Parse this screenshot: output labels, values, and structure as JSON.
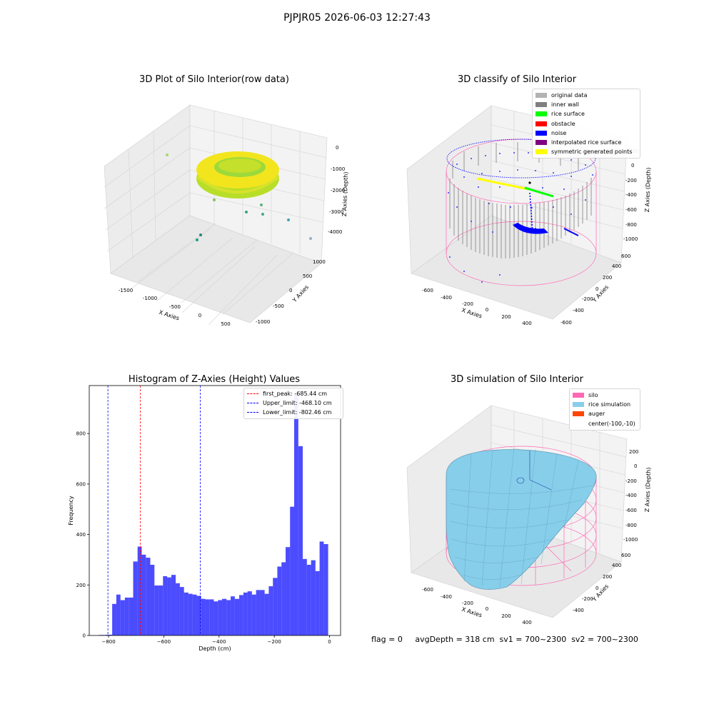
{
  "suptitle": "PJPJR05 2026-06-03 12:27:43",
  "panels": {
    "raw": {
      "title": "3D Plot of Silo Interior(row data)",
      "xlabel": "X Axies",
      "ylabel": "Y Axies",
      "zlabel": "Z Axies (Depth)",
      "xticks": [
        "-1500",
        "-1000",
        "-500",
        "0",
        "500"
      ],
      "yticks": [
        "1000",
        "500",
        "0",
        "-500",
        "-1000"
      ],
      "zticks": [
        "0",
        "-1000",
        "-2000",
        "-3000",
        "-4000"
      ]
    },
    "classify": {
      "title": "3D classify of Silo Interior",
      "xlabel": "X Axies",
      "ylabel": "Y Axies",
      "zlabel": "Z Axies (Depth)",
      "xticks": [
        "-600",
        "-400",
        "-200",
        "0",
        "200",
        "400"
      ],
      "yticks": [
        "600",
        "400",
        "200",
        "0",
        "-200",
        "-400",
        "-600"
      ],
      "zticks": [
        "200",
        "0",
        "-200",
        "-400",
        "-600",
        "-800",
        "-1000"
      ],
      "legend": [
        {
          "label": "original data",
          "color": "#b3b3b3"
        },
        {
          "label": "inner wall",
          "color": "#808080"
        },
        {
          "label": "rice surface",
          "color": "#00ff00"
        },
        {
          "label": "obstacle",
          "color": "#ff0000"
        },
        {
          "label": "noise",
          "color": "#0000ff"
        },
        {
          "label": "interpolated rice surface",
          "color": "#800080"
        },
        {
          "label": "symmetric generated points",
          "color": "#ffff00"
        }
      ]
    },
    "simulation": {
      "title": "3D simulation of Silo Interior",
      "xlabel": "X Axies",
      "ylabel": "Y Axies",
      "zlabel": "Z Axies (Depth)",
      "xticks": [
        "-600",
        "-400",
        "-200",
        "0",
        "200",
        "400"
      ],
      "yticks": [
        "600",
        "400",
        "200",
        "0",
        "-200",
        "-400"
      ],
      "zticks": [
        "200",
        "0",
        "-200",
        "-400",
        "-600",
        "-800",
        "-1000"
      ],
      "legend": [
        {
          "label": "silo",
          "color": "#ff69b4"
        },
        {
          "label": "rice simulation",
          "color": "#87ceeb"
        },
        {
          "label": "auger",
          "color": "#ff4500"
        },
        {
          "label": "center(-100,-10)",
          "color": ""
        }
      ]
    }
  },
  "chart_data": {
    "type": "bar",
    "title": "Histogram of Z-Axies (Height) Values",
    "xlabel": "Depth (cm)",
    "ylabel": "Frequency",
    "xlim": [
      -870,
      40
    ],
    "ylim": [
      0,
      990
    ],
    "xticks": [
      -800,
      -600,
      -400,
      -200,
      0
    ],
    "yticks": [
      0,
      200,
      400,
      600,
      800
    ],
    "bar_color": "#0000ff",
    "bins": [
      {
        "x0": -835,
        "x1": -810,
        "count": 2
      },
      {
        "x0": -810,
        "x1": -787,
        "count": 3
      },
      {
        "x0": -787,
        "x1": -772,
        "count": 125
      },
      {
        "x0": -772,
        "x1": -757,
        "count": 162
      },
      {
        "x0": -757,
        "x1": -741,
        "count": 140
      },
      {
        "x0": -741,
        "x1": -726,
        "count": 150
      },
      {
        "x0": -726,
        "x1": -711,
        "count": 150
      },
      {
        "x0": -711,
        "x1": -695,
        "count": 293
      },
      {
        "x0": -695,
        "x1": -680,
        "count": 352
      },
      {
        "x0": -680,
        "x1": -665,
        "count": 320
      },
      {
        "x0": -665,
        "x1": -649,
        "count": 308
      },
      {
        "x0": -649,
        "x1": -634,
        "count": 280
      },
      {
        "x0": -634,
        "x1": -619,
        "count": 198
      },
      {
        "x0": -619,
        "x1": -603,
        "count": 198
      },
      {
        "x0": -603,
        "x1": -588,
        "count": 235
      },
      {
        "x0": -588,
        "x1": -573,
        "count": 230
      },
      {
        "x0": -573,
        "x1": -557,
        "count": 240
      },
      {
        "x0": -557,
        "x1": -542,
        "count": 207
      },
      {
        "x0": -542,
        "x1": -527,
        "count": 192
      },
      {
        "x0": -527,
        "x1": -511,
        "count": 170
      },
      {
        "x0": -511,
        "x1": -496,
        "count": 165
      },
      {
        "x0": -496,
        "x1": -481,
        "count": 162
      },
      {
        "x0": -481,
        "x1": -465,
        "count": 157
      },
      {
        "x0": -465,
        "x1": -450,
        "count": 145
      },
      {
        "x0": -450,
        "x1": -435,
        "count": 143
      },
      {
        "x0": -435,
        "x1": -419,
        "count": 143
      },
      {
        "x0": -419,
        "x1": -404,
        "count": 135
      },
      {
        "x0": -404,
        "x1": -389,
        "count": 140
      },
      {
        "x0": -389,
        "x1": -373,
        "count": 145
      },
      {
        "x0": -373,
        "x1": -358,
        "count": 140
      },
      {
        "x0": -358,
        "x1": -343,
        "count": 155
      },
      {
        "x0": -343,
        "x1": -327,
        "count": 145
      },
      {
        "x0": -327,
        "x1": -312,
        "count": 160
      },
      {
        "x0": -312,
        "x1": -297,
        "count": 170
      },
      {
        "x0": -297,
        "x1": -281,
        "count": 175
      },
      {
        "x0": -281,
        "x1": -266,
        "count": 162
      },
      {
        "x0": -266,
        "x1": -251,
        "count": 180
      },
      {
        "x0": -251,
        "x1": -235,
        "count": 180
      },
      {
        "x0": -235,
        "x1": -220,
        "count": 165
      },
      {
        "x0": -220,
        "x1": -205,
        "count": 195
      },
      {
        "x0": -205,
        "x1": -189,
        "count": 228
      },
      {
        "x0": -189,
        "x1": -174,
        "count": 273
      },
      {
        "x0": -174,
        "x1": -159,
        "count": 290
      },
      {
        "x0": -159,
        "x1": -143,
        "count": 350
      },
      {
        "x0": -143,
        "x1": -128,
        "count": 510
      },
      {
        "x0": -128,
        "x1": -113,
        "count": 955
      },
      {
        "x0": -113,
        "x1": -97,
        "count": 750
      },
      {
        "x0": -97,
        "x1": -82,
        "count": 303
      },
      {
        "x0": -82,
        "x1": -67,
        "count": 280
      },
      {
        "x0": -67,
        "x1": -51,
        "count": 298
      },
      {
        "x0": -51,
        "x1": -36,
        "count": 255
      },
      {
        "x0": -36,
        "x1": -21,
        "count": 372
      },
      {
        "x0": -21,
        "x1": -5,
        "count": 362
      }
    ],
    "vlines": [
      {
        "label": "first_peak: -685.44 cm",
        "x": -685.44,
        "color": "#ff0000"
      },
      {
        "label": "Upper_limit: -468.10 cm",
        "x": -468.1,
        "color": "#0000ff"
      },
      {
        "label": "Lower_limit: -802.46 cm",
        "x": -802.46,
        "color": "#0000ff"
      }
    ],
    "legend_position": "top-right"
  },
  "footer": "flag = 0     avgDepth = 318 cm  sv1 = 700~2300  sv2 = 700~2300"
}
